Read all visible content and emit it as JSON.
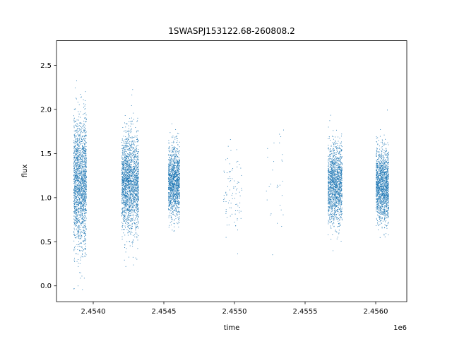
{
  "chart_data": {
    "type": "scatter",
    "title": "1SWASPJ153122.68-260808.2",
    "xlabel": "time",
    "ylabel": "flux",
    "x_offset_label": "1e6",
    "xlim": [
      2.45374,
      2.45622
    ],
    "ylim": [
      -0.18,
      2.78
    ],
    "x_ticks": [
      2.454,
      2.4545,
      2.455,
      2.4555,
      2.456
    ],
    "x_tick_labels": [
      "2.4540",
      "2.4545",
      "2.4550",
      "2.4555",
      "2.4560"
    ],
    "y_ticks": [
      0.0,
      0.5,
      1.0,
      1.5,
      2.0,
      2.5
    ],
    "y_tick_labels": [
      "0.0",
      "0.5",
      "1.0",
      "1.5",
      "2.0",
      "2.5"
    ],
    "grid": false,
    "series": [
      {
        "color": "#1f77b4",
        "clusters": [
          {
            "x_range": [
              2.45386,
              2.45395
            ],
            "center_flux": 1.17,
            "spread": 0.36,
            "count": 1800
          },
          {
            "x_range": [
              2.4542,
              2.45432
            ],
            "center_flux": 1.17,
            "spread": 0.28,
            "count": 2000
          },
          {
            "x_range": [
              2.45453,
              2.45461
            ],
            "center_flux": 1.18,
            "spread": 0.2,
            "count": 1300
          },
          {
            "x_range": [
              2.45492,
              2.45505
            ],
            "center_flux": 1.1,
            "spread": 0.25,
            "count": 90
          },
          {
            "x_range": [
              2.45521,
              2.45535
            ],
            "center_flux": 1.15,
            "spread": 0.3,
            "count": 30
          },
          {
            "x_range": [
              2.45566,
              2.45576
            ],
            "center_flux": 1.15,
            "spread": 0.22,
            "count": 1500
          },
          {
            "x_range": [
              2.456,
              2.45609
            ],
            "center_flux": 1.14,
            "spread": 0.2,
            "count": 1500
          }
        ]
      }
    ]
  }
}
